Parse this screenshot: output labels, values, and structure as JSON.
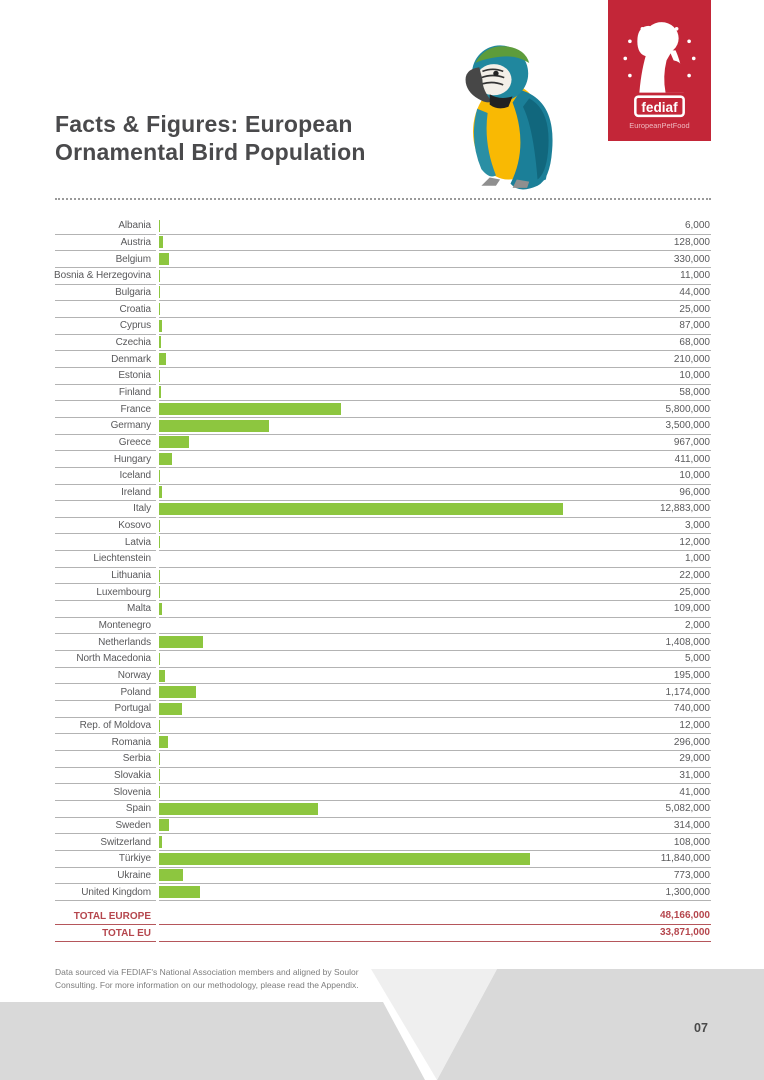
{
  "page": {
    "title_line1": "Facts & Figures: European",
    "title_line2": "Ornamental Bird Population"
  },
  "logo": {
    "name": "fediaf",
    "tagline": "EuropeanPetFood",
    "bg_color": "#c32638"
  },
  "chart_data": {
    "type": "bar",
    "orientation": "horizontal",
    "title": "European Ornamental Bird Population",
    "bar_color": "#8dc63f",
    "grid": false,
    "categories": [
      "Albania",
      "Austria",
      "Belgium",
      "Bosnia & Herzegovina",
      "Bulgaria",
      "Croatia",
      "Cyprus",
      "Czechia",
      "Denmark",
      "Estonia",
      "Finland",
      "France",
      "Germany",
      "Greece",
      "Hungary",
      "Iceland",
      "Ireland",
      "Italy",
      "Kosovo",
      "Latvia",
      "Liechtenstein",
      "Lithuania",
      "Luxembourg",
      "Malta",
      "Montenegro",
      "Netherlands",
      "North Macedonia",
      "Norway",
      "Poland",
      "Portugal",
      "Rep. of Moldova",
      "Romania",
      "Serbia",
      "Slovakia",
      "Slovenia",
      "Spain",
      "Sweden",
      "Switzerland",
      "Türkiye",
      "Ukraine",
      "United Kingdom"
    ],
    "values": [
      6000,
      128000,
      330000,
      11000,
      44000,
      25000,
      87000,
      68000,
      210000,
      10000,
      58000,
      5800000,
      3500000,
      967000,
      411000,
      10000,
      96000,
      12883000,
      3000,
      12000,
      1000,
      22000,
      25000,
      109000,
      2000,
      1408000,
      5000,
      195000,
      1174000,
      740000,
      12000,
      296000,
      29000,
      31000,
      41000,
      5082000,
      314000,
      108000,
      11840000,
      773000,
      1300000
    ],
    "totals": [
      {
        "label": "TOTAL EUROPE",
        "value": 48166000
      },
      {
        "label": "TOTAL EU",
        "value": 33871000
      }
    ],
    "accent_color": "#b5464d"
  },
  "footer": {
    "note": "Data sourced via FEDIAF's National Association members and aligned by Soulor Consulting. For more information on our methodology, please read the Appendix.",
    "page_number": "07"
  }
}
